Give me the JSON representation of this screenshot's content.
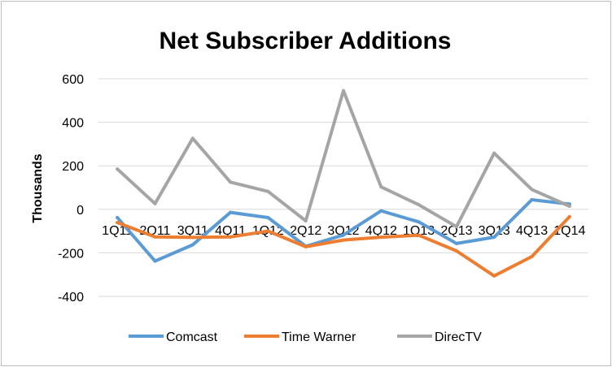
{
  "chart_data": {
    "type": "line",
    "title": "Net Subscriber Additions",
    "ylabel": "Thousands",
    "xlabel": "",
    "ylim": [
      -400,
      600
    ],
    "yticks": [
      600,
      400,
      200,
      0,
      -200,
      -400
    ],
    "grid": true,
    "legend_position": "bottom",
    "categories": [
      "1Q11",
      "2Q11",
      "3Q11",
      "4Q11",
      "1Q12",
      "2Q12",
      "3Q12",
      "4Q12",
      "1Q13",
      "2Q13",
      "3Q13",
      "4Q13",
      "1Q14"
    ],
    "series": [
      {
        "name": "Comcast",
        "color": "#5b9bd5",
        "values": [
          -38,
          -238,
          -163,
          -14,
          -38,
          -170,
          -118,
          -7,
          -58,
          -157,
          -128,
          44,
          24
        ]
      },
      {
        "name": "Time Warner",
        "color": "#ed7d31",
        "values": [
          -61,
          -127,
          -129,
          -127,
          -100,
          -172,
          -141,
          -128,
          -119,
          -191,
          -306,
          -217,
          -34
        ]
      },
      {
        "name": "DirecTV",
        "color": "#a5a5a5",
        "values": [
          185,
          26,
          326,
          125,
          82,
          -53,
          545,
          103,
          21,
          -80,
          258,
          91,
          14
        ]
      }
    ]
  }
}
